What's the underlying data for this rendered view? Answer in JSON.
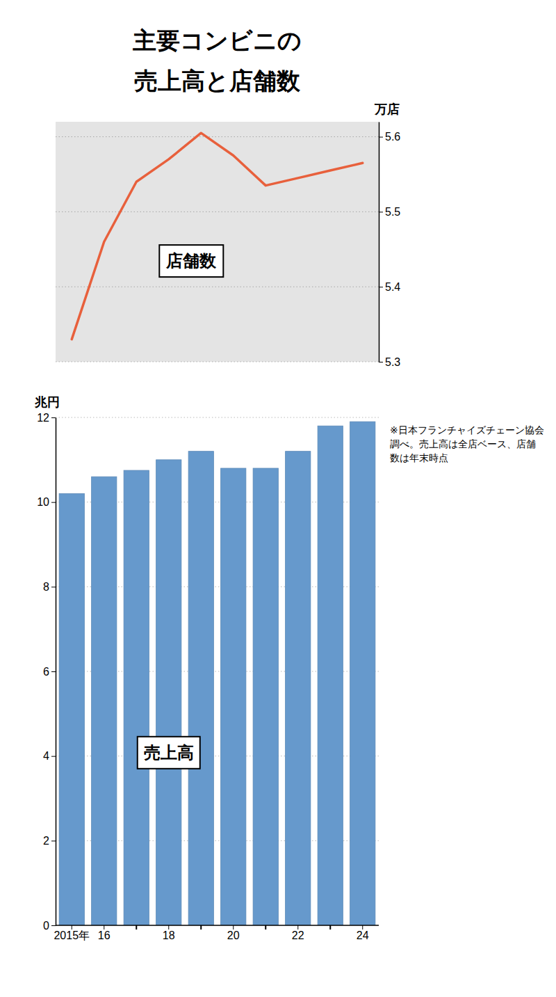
{
  "chart_data": [
    {
      "type": "line",
      "title": "主要コンビニの\n売上高と店舗数",
      "categories": [
        "2015年",
        "16",
        null,
        "18",
        null,
        "20",
        null,
        "22",
        null,
        "24"
      ],
      "series": [
        {
          "name": "店舗数",
          "color": "#E8603C",
          "values": [
            5.33,
            5.46,
            5.54,
            5.57,
            5.605,
            5.575,
            5.535,
            5.545,
            5.555,
            5.565
          ]
        }
      ],
      "ylabel": "万店",
      "ylim": [
        5.3,
        5.62
      ],
      "yticks": [
        5.3,
        5.4,
        5.5,
        5.6
      ],
      "grid": true,
      "tick_labels": "y"
    },
    {
      "type": "bar",
      "categories": [
        "2015年",
        "16",
        null,
        "18",
        null,
        "20",
        null,
        "22",
        null,
        "24"
      ],
      "series": [
        {
          "name": "売上高",
          "color": "#6699CC",
          "values": [
            10.2,
            10.6,
            10.75,
            11.0,
            11.2,
            10.8,
            10.8,
            11.2,
            11.8,
            11.9
          ]
        }
      ],
      "ylabel": "兆円",
      "ylim": [
        0,
        12
      ],
      "yticks": [
        0,
        2,
        4,
        6,
        8,
        10,
        12
      ],
      "grid": true,
      "annotations": [
        "※日本フランチャイズチェーン協会\n調べ。売上高は全店ベース、店舗\n数は年末時点"
      ]
    }
  ]
}
